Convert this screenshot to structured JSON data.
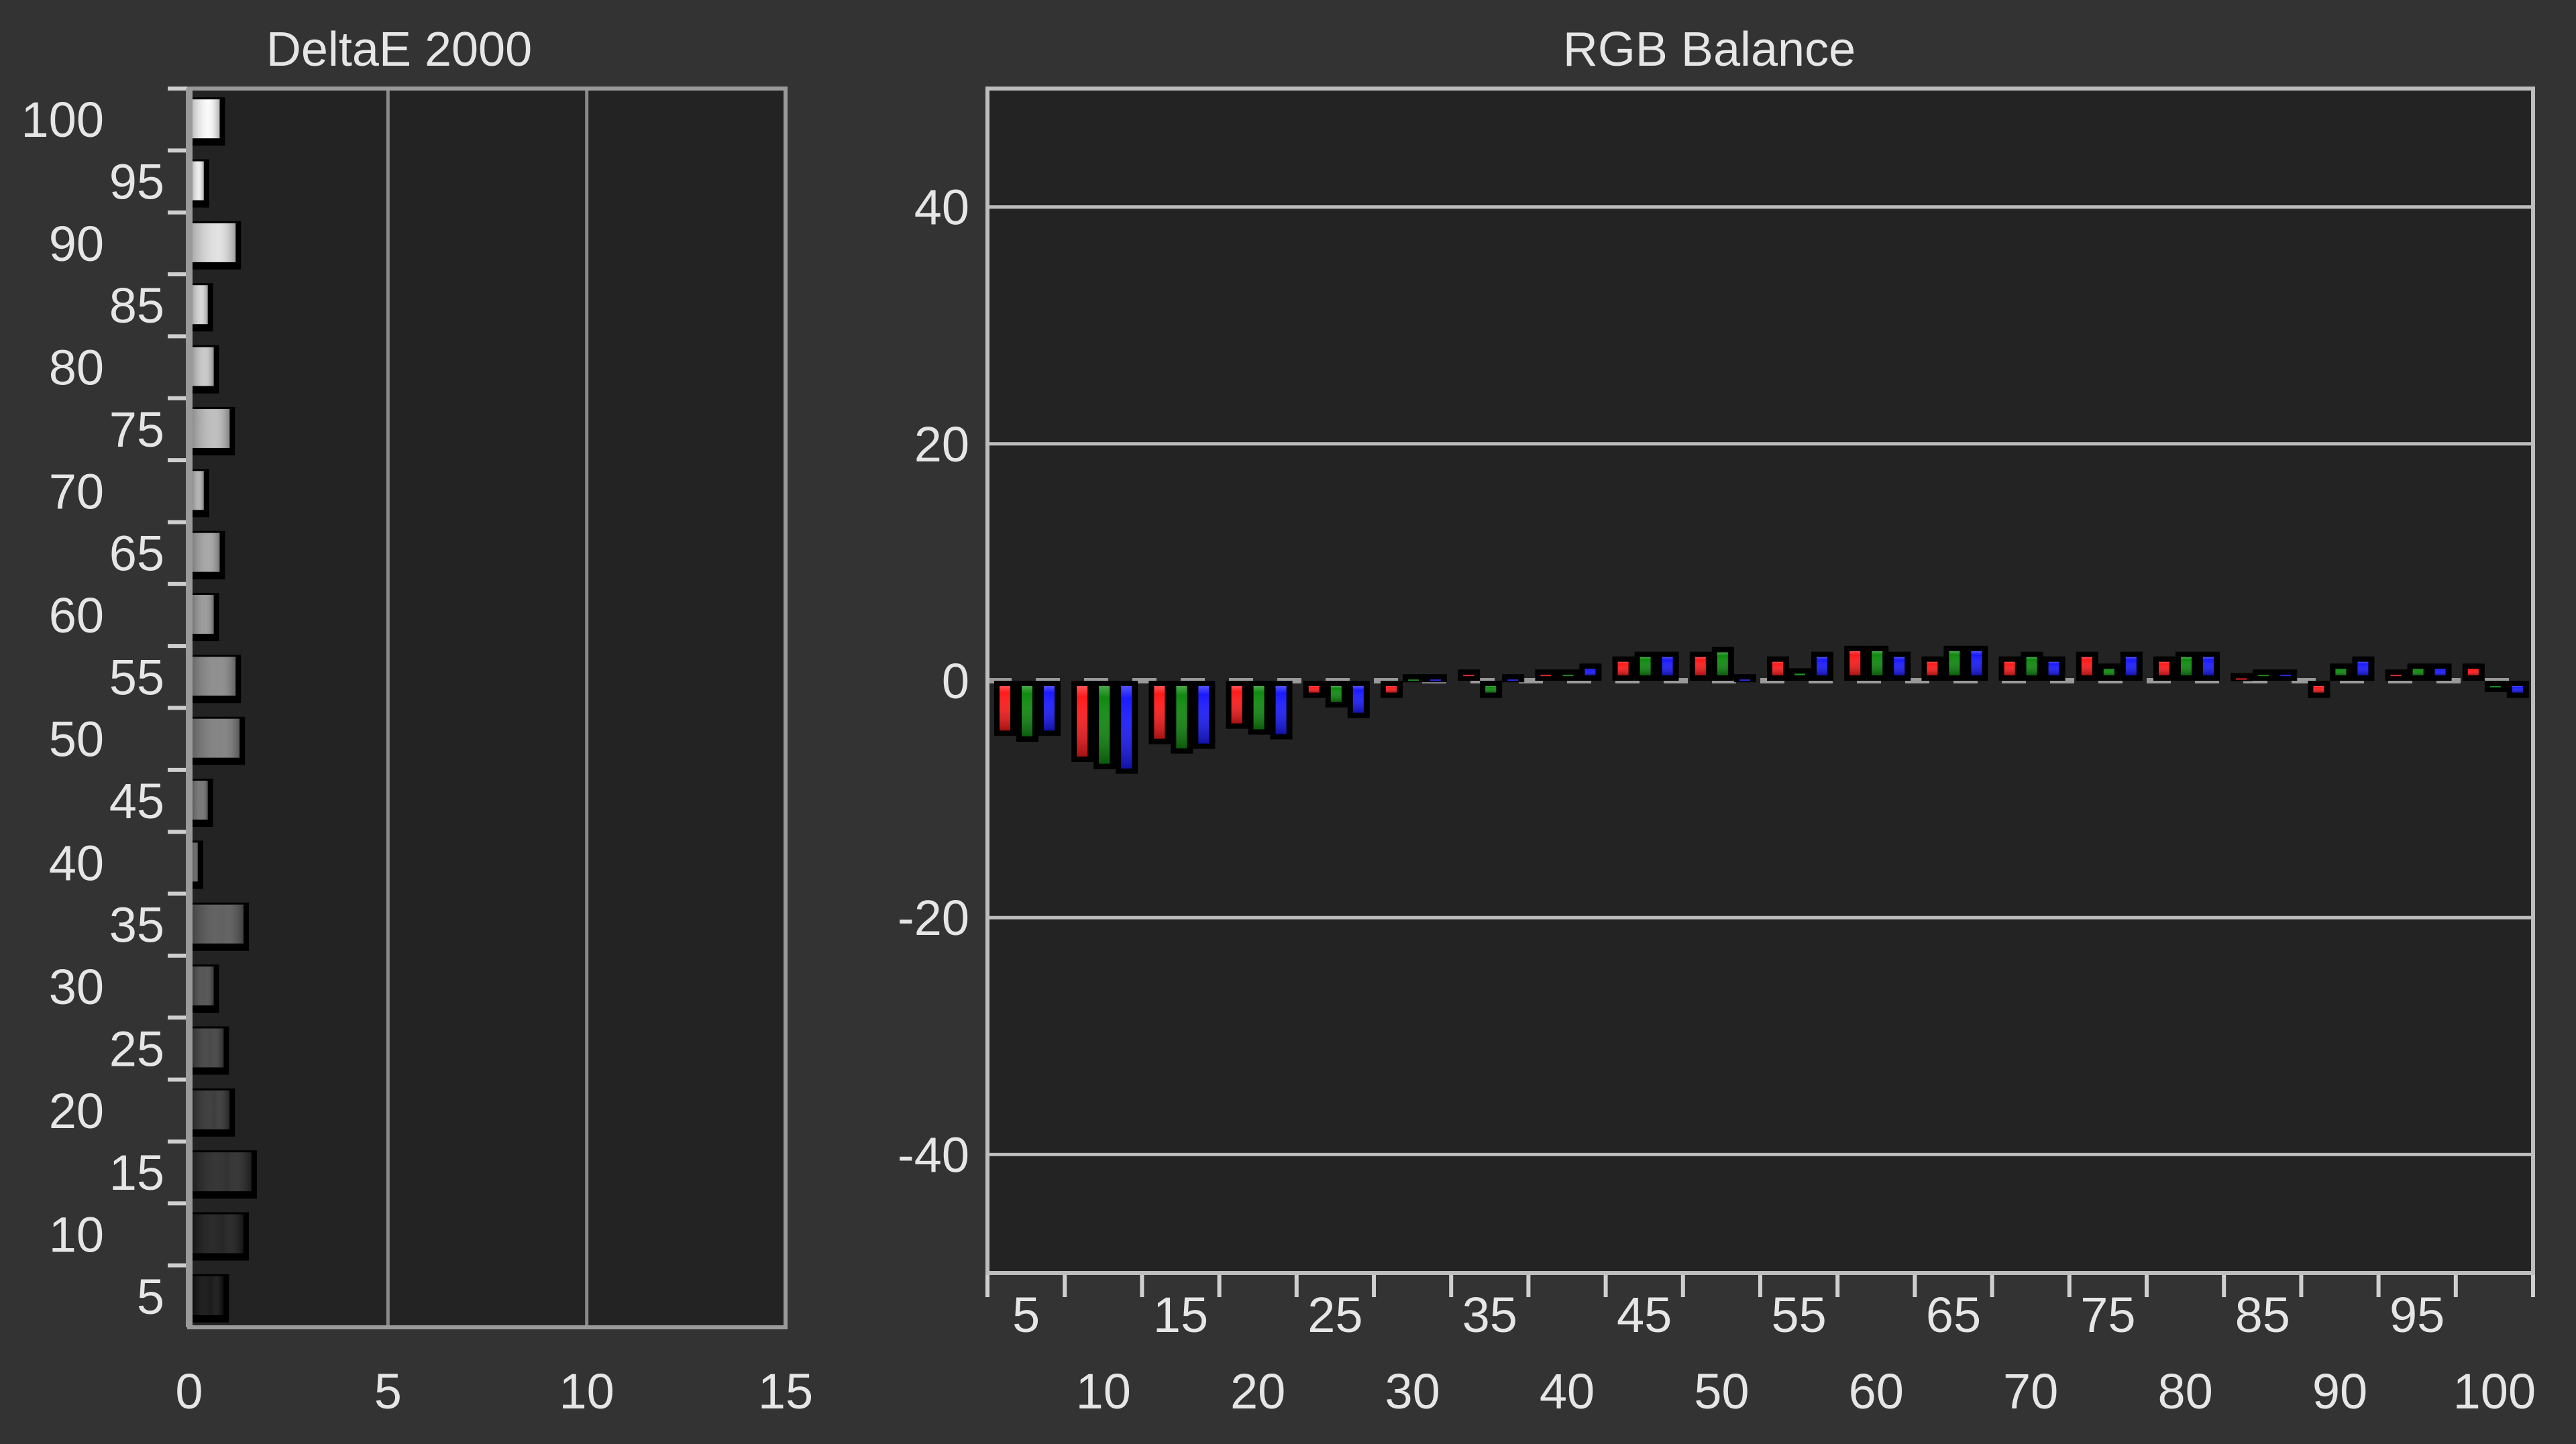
{
  "chart_data": [
    {
      "type": "bar",
      "orientation": "horizontal",
      "title": "DeltaE 2000",
      "categories": [
        "100",
        "95",
        "90",
        "85",
        "80",
        "75",
        "70",
        "65",
        "60",
        "55",
        "50",
        "45",
        "40",
        "35",
        "30",
        "25",
        "20",
        "15",
        "10",
        "5"
      ],
      "values": [
        0.7,
        0.3,
        1.1,
        0.4,
        0.55,
        0.95,
        0.3,
        0.7,
        0.55,
        1.1,
        1.2,
        0.4,
        0.15,
        1.3,
        0.55,
        0.8,
        0.95,
        1.5,
        1.3,
        0.8
      ],
      "xlim": [
        0,
        15
      ],
      "xticks": [
        "0",
        "5",
        "10",
        "15"
      ],
      "grid": true
    },
    {
      "type": "bar",
      "title": "RGB Balance",
      "categories": [
        "5",
        "10",
        "15",
        "20",
        "25",
        "30",
        "35",
        "40",
        "45",
        "50",
        "55",
        "60",
        "65",
        "70",
        "75",
        "80",
        "85",
        "90",
        "95",
        "100"
      ],
      "series": [
        {
          "color": "#ff1a1a",
          "values": [
            -4.2,
            -6.4,
            -4.9,
            -3.6,
            -1.0,
            -1.0,
            0.5,
            0.5,
            1.6,
            2.0,
            1.6,
            2.5,
            1.6,
            1.6,
            2.0,
            1.6,
            0.2,
            -1.0,
            0.5,
            1.0
          ]
        },
        {
          "color": "#0f8a0f",
          "values": [
            -4.7,
            -7.0,
            -5.7,
            -4.1,
            -1.8,
            0.1,
            -1.0,
            0.5,
            2.0,
            2.4,
            0.6,
            2.5,
            2.5,
            2.0,
            1.0,
            2.0,
            0.5,
            1.0,
            1.0,
            -0.5
          ]
        },
        {
          "color": "#1a1aff",
          "values": [
            -4.2,
            -7.4,
            -5.3,
            -4.5,
            -2.7,
            0.1,
            0.1,
            1.0,
            2.0,
            0.1,
            2.0,
            2.0,
            2.5,
            1.6,
            2.0,
            2.0,
            0.5,
            1.6,
            1.0,
            -1.0
          ]
        }
      ],
      "ylim": [
        -50,
        50
      ],
      "yticks": [
        "40",
        "20",
        "0",
        "-20",
        "-40"
      ],
      "grid": true
    }
  ]
}
